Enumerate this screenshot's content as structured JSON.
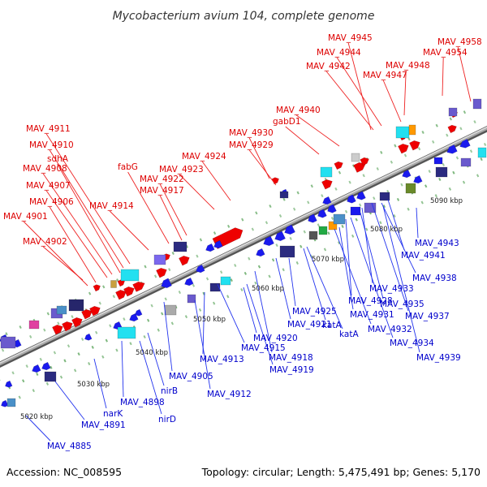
{
  "title": "Mycobacterium avium 104, complete genome",
  "footer": {
    "accession": "Accession: NC_008595",
    "summary": "Topology: circular; Length: 5,475,491 bp; Genes: 5,170"
  },
  "colors": {
    "forward_label": "#dd0000",
    "reverse_label": "#0000cc",
    "forward_gene": "#ee0000",
    "reverse_gene": "#1a1aee",
    "backbone": "#888888",
    "tick": "#2a8a2a"
  },
  "scale_labels": [
    "5020 kbp",
    "5030 kbp",
    "5040 kbp",
    "5050 kbp",
    "5060 kbp",
    "5070 kbp",
    "5080 kbp",
    "5090 kbp"
  ],
  "forward_labels": [
    "MAV_4945",
    "MAV_4958",
    "MAV_4944",
    "MAV_4954",
    "MAV_4942",
    "MAV_4948",
    "MAV_4947",
    "MAV_4940",
    "gabD1",
    "MAV_4911",
    "MAV_4930",
    "MAV_4910",
    "MAV_4929",
    "sdhA",
    "MAV_4924",
    "fabG",
    "MAV_4923",
    "MAV_4908",
    "MAV_4922",
    "MAV_4907",
    "MAV_4917",
    "MAV_4906",
    "MAV_4914",
    "MAV_4901",
    "MAV_4902"
  ],
  "reverse_labels": [
    "MAV_4943",
    "MAV_4941",
    "MAV_4938",
    "MAV_4933",
    "MAV_4935",
    "MAV_4928",
    "MAV_4937",
    "MAV_4931",
    "MAV_4925",
    "MAV_4932",
    "katA",
    "MAV_4921",
    "katA",
    "MAV_4934",
    "MAV_4920",
    "MAV_4915",
    "MAV_4939",
    "MAV_4918",
    "MAV_4913",
    "MAV_4919",
    "MAV_4905",
    "nirB",
    "MAV_4912",
    "MAV_4898",
    "narK",
    "MAV_4891",
    "nirD",
    "MAV_4885"
  ]
}
